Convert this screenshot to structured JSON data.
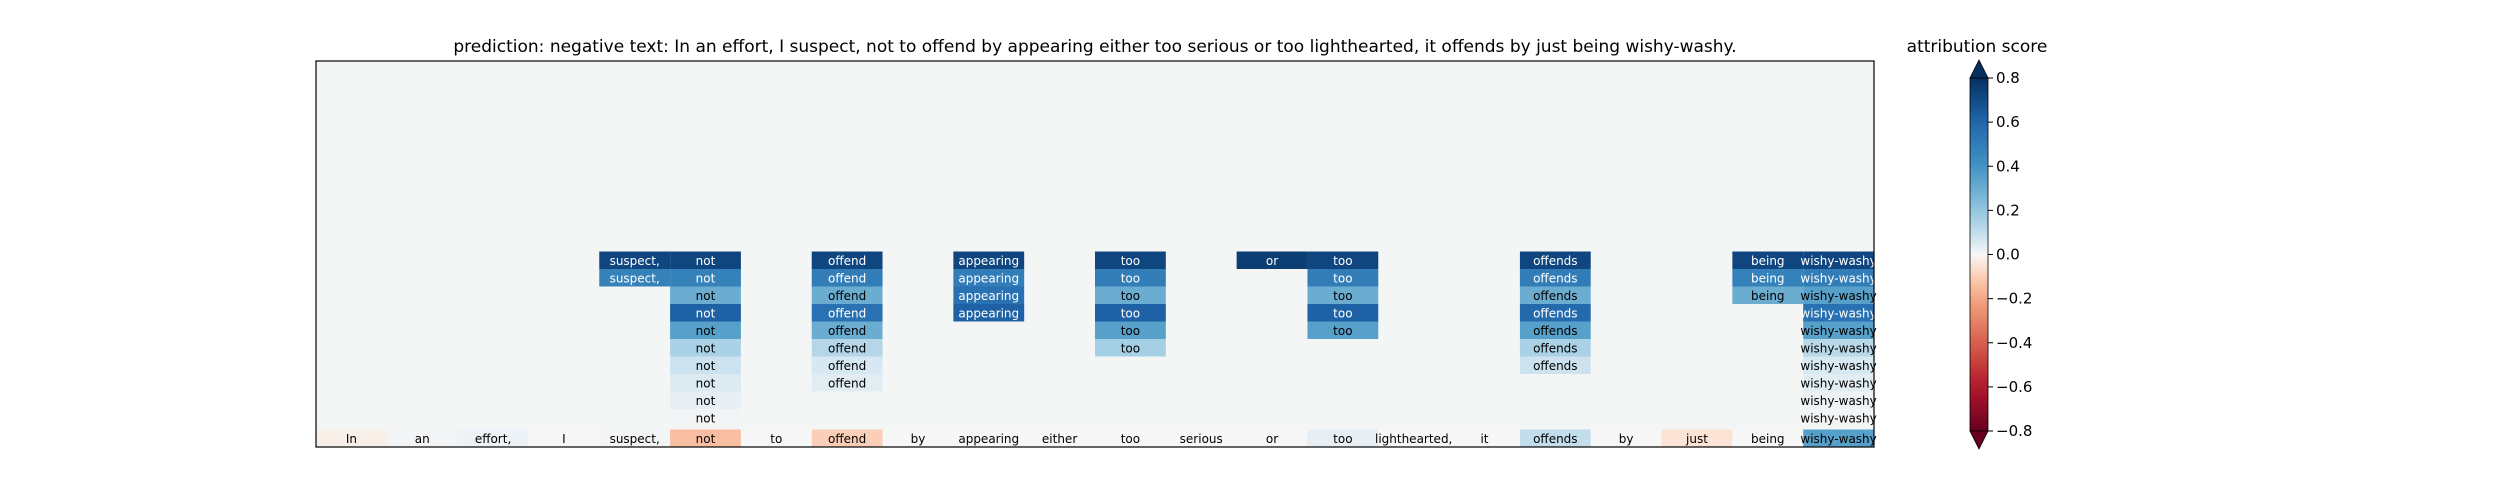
{
  "chart_data": {
    "type": "heatmap",
    "title": "prediction:  negative     text:  In an effort, I suspect, not to offend by appearing either too serious or too lighthearted, it offends by just being wishy-washy.",
    "colorbar": {
      "label": "attribution score",
      "range": [
        -0.8,
        0.8
      ],
      "ticks": [
        "0.8",
        "0.6",
        "0.4",
        "0.2",
        "0.0",
        "−0.2",
        "−0.4",
        "−0.6",
        "−0.8"
      ],
      "tick_values": [
        0.8,
        0.6,
        0.4,
        0.2,
        0.0,
        -0.2,
        -0.4,
        -0.6,
        -0.8
      ],
      "colormap": "RdBu",
      "extend": "both"
    },
    "tokens": [
      "In",
      "an",
      "effort,",
      "I",
      "suspect,",
      "not",
      "to",
      "offend",
      "by",
      "appearing",
      "either",
      "too",
      "serious",
      "or",
      "too",
      "lighthearted,",
      "it",
      "offends",
      "by",
      "just",
      "being",
      "wishy-washy"
    ],
    "base_row_values": [
      -0.02,
      0.01,
      0.02,
      0.0,
      0.01,
      -0.14,
      0.0,
      -0.1,
      0.0,
      0.0,
      0.0,
      0.0,
      0.0,
      0.0,
      0.03,
      0.0,
      0.0,
      0.1,
      0.0,
      -0.05,
      0.0,
      0.35
    ],
    "stack_rows": 10,
    "columns": [
      {
        "index": 4,
        "values": [
          0.72,
          0.48
        ]
      },
      {
        "index": 5,
        "values": [
          0.72,
          0.48,
          0.3,
          0.62,
          0.35,
          0.15,
          0.08,
          0.05,
          0.03,
          0.01
        ]
      },
      {
        "index": 7,
        "values": [
          0.72,
          0.5,
          0.3,
          0.55,
          0.3,
          0.13,
          0.06,
          0.04
        ]
      },
      {
        "index": 9,
        "values": [
          0.72,
          0.5,
          0.55,
          0.62
        ]
      },
      {
        "index": 11,
        "values": [
          0.72,
          0.5,
          0.3,
          0.62,
          0.35,
          0.16
        ]
      },
      {
        "index": 13,
        "values": [
          0.75
        ]
      },
      {
        "index": 14,
        "values": [
          0.72,
          0.5,
          0.3,
          0.62,
          0.35
        ]
      },
      {
        "index": 17,
        "values": [
          0.72,
          0.5,
          0.3,
          0.58,
          0.35,
          0.15,
          0.08
        ]
      },
      {
        "index": 20,
        "values": [
          0.72,
          0.48,
          0.3
        ]
      },
      {
        "index": 21,
        "values": [
          0.72,
          0.5,
          0.35,
          0.55,
          0.35,
          0.12,
          0.06,
          0.04,
          0.02,
          0.01
        ]
      }
    ]
  }
}
